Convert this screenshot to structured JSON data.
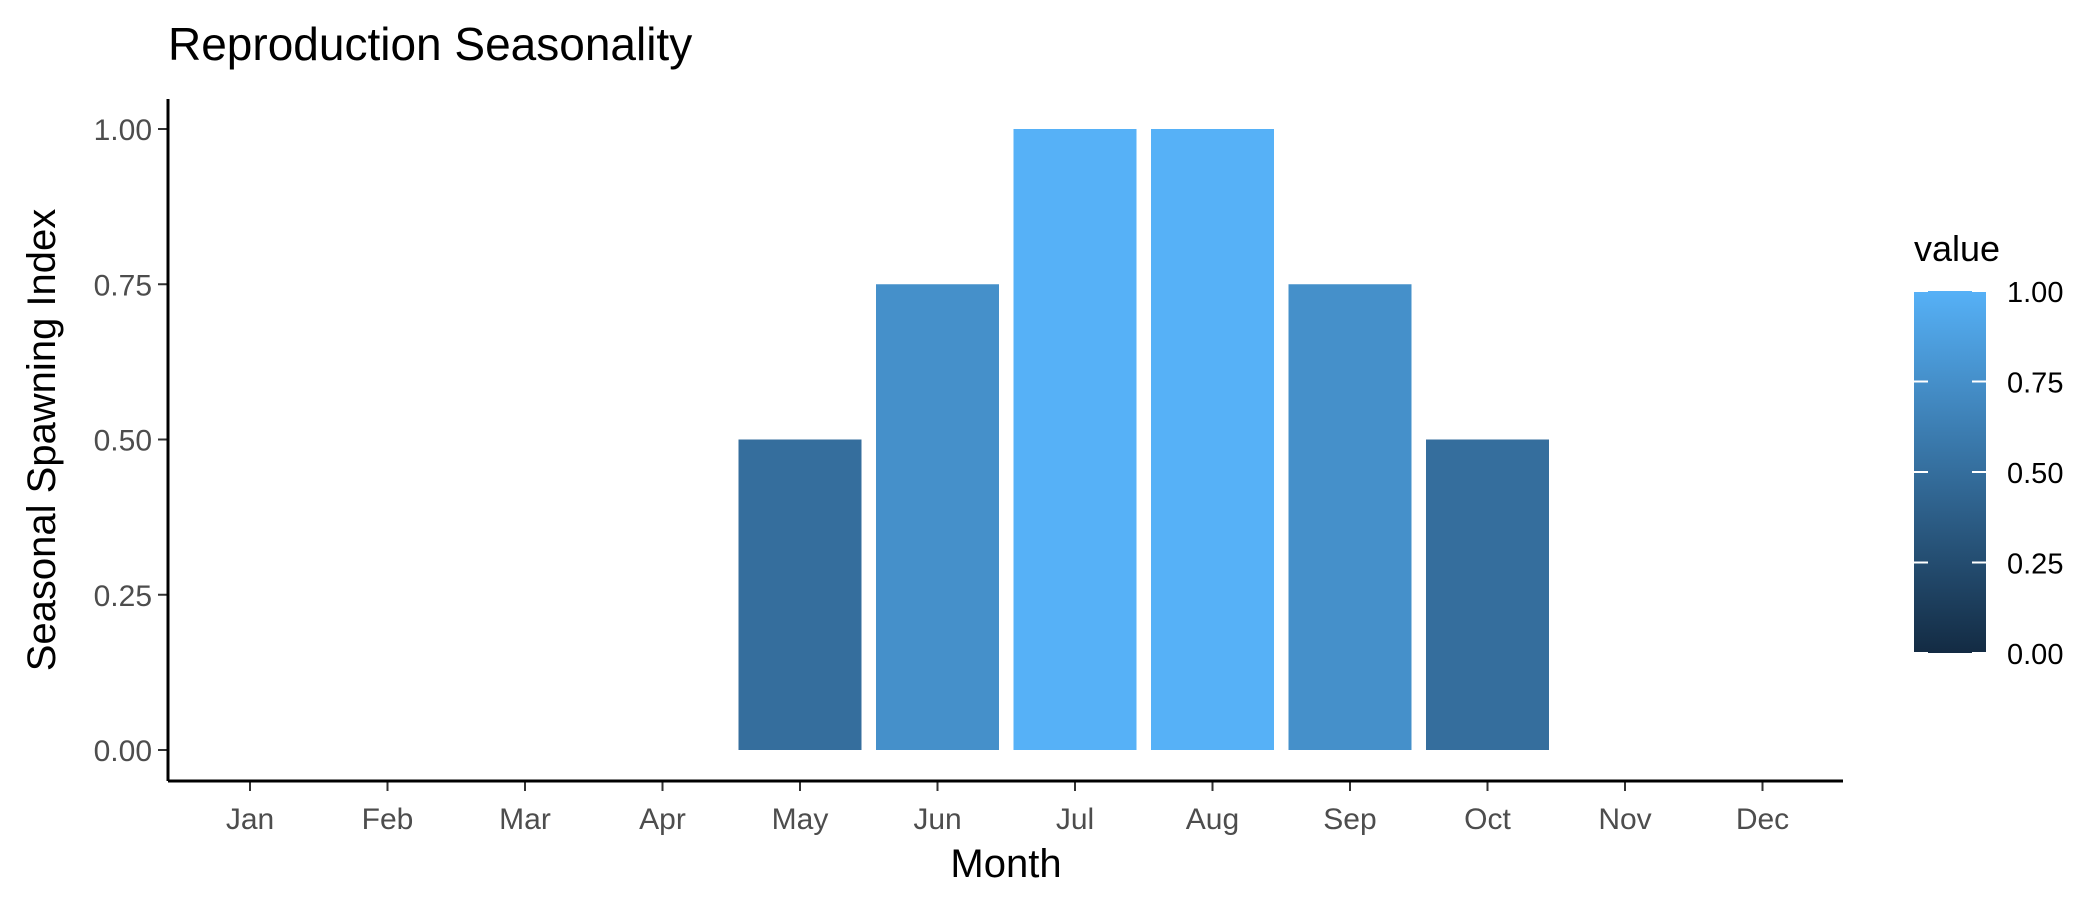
{
  "chart_data": {
    "type": "bar",
    "title": "Reproduction Seasonality",
    "xlabel": "Month",
    "ylabel": "Seasonal Spawning Index",
    "categories": [
      "Jan",
      "Feb",
      "Mar",
      "Apr",
      "May",
      "Jun",
      "Jul",
      "Aug",
      "Sep",
      "Oct",
      "Nov",
      "Dec"
    ],
    "values": [
      0,
      0,
      0,
      0,
      0.5,
      0.75,
      1.0,
      1.0,
      0.75,
      0.5,
      0,
      0
    ],
    "ylim": [
      0,
      1
    ],
    "yticks": [
      "0.00",
      "0.25",
      "0.50",
      "0.75",
      "1.00"
    ],
    "grid": false,
    "legend": {
      "title": "value",
      "placement": "right",
      "type": "colorbar",
      "range": [
        0,
        1
      ],
      "ticks": [
        "0.00",
        "0.25",
        "0.50",
        "0.75",
        "1.00"
      ],
      "color_low": "#132B43",
      "color_high": "#56B1F7"
    }
  }
}
